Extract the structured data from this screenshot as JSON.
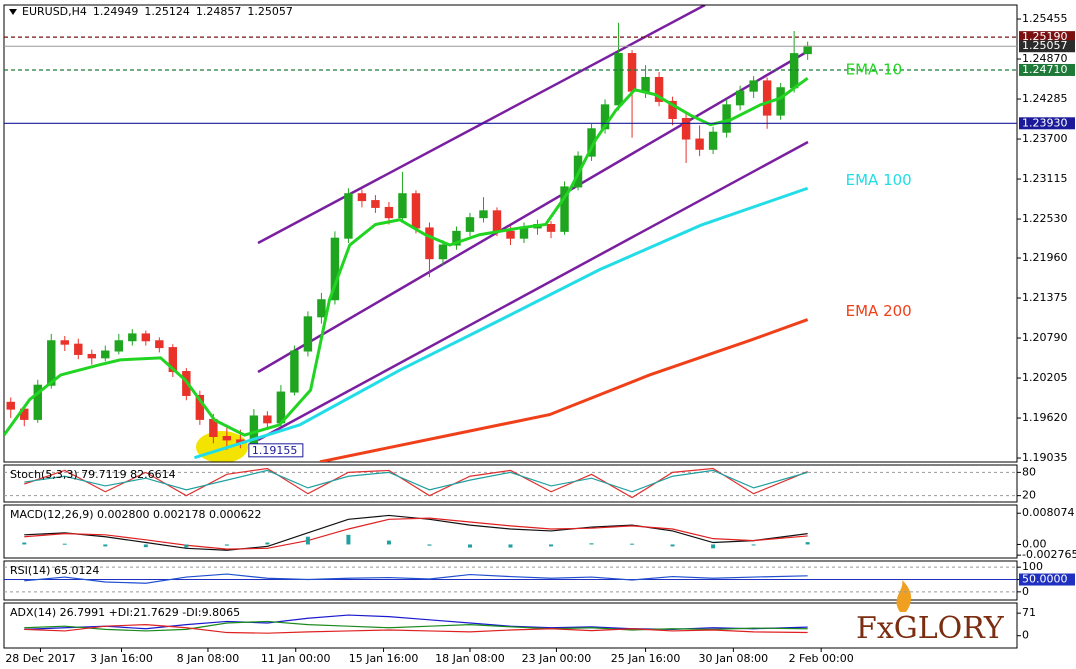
{
  "chart_data": [
    {
      "type": "candlestick",
      "symbol": "EURUSD,H4",
      "xlim": [
        0,
        75
      ],
      "xticks": [
        {
          "value": 2.7,
          "label": "28 Dec 2017"
        },
        {
          "value": 8.7,
          "label": "3 Jan 16:00"
        },
        {
          "value": 15.1,
          "label": "8 Jan 08:00"
        },
        {
          "value": 21.6,
          "label": "11 Jan 00:00"
        },
        {
          "value": 28.1,
          "label": "15 Jan 16:00"
        },
        {
          "value": 34.5,
          "label": "18 Jan 08:00"
        },
        {
          "value": 40.9,
          "label": "23 Jan 00:00"
        },
        {
          "value": 47.5,
          "label": "25 Jan 16:00"
        },
        {
          "value": 54,
          "label": "30 Jan 08:00"
        },
        {
          "value": 60.5,
          "label": "2 Feb 00:00"
        }
      ],
      "ylim": [
        1.18977,
        1.2566
      ],
      "yticks": [
        1.25455,
        {
          "value": 1.2487,
          "label": "1.24870"
        },
        1.24285,
        {
          "value": 1.237,
          "label": "1.23700"
        },
        1.23115,
        {
          "value": 1.2253,
          "label": "1.22530"
        },
        {
          "value": 1.2196,
          "label": "1.21960"
        },
        1.21375,
        {
          "value": 1.2079,
          "label": "1.20790"
        },
        1.20205,
        {
          "value": 1.1962,
          "label": "1.19620"
        },
        1.19035
      ],
      "bull_color": "#1fa51f",
      "bear_color": "#e8322a",
      "price_levels": [
        {
          "value": 1.2519,
          "label": "1.25190",
          "color": "#7a1010",
          "dashed": true
        },
        {
          "value": 1.2471,
          "label": "1.24710",
          "color": "#1f7a3a",
          "dashed": true
        },
        {
          "value": 1.2393,
          "label": "1.23930",
          "color": "#1a1a9a",
          "dashed": false
        }
      ],
      "candles": [
        [
          1.1985,
          1.1992,
          1.1962,
          1.1975
        ],
        [
          1.1975,
          1.198,
          1.195,
          1.196
        ],
        [
          1.196,
          1.2018,
          1.1955,
          1.201
        ],
        [
          1.201,
          1.2085,
          1.2005,
          1.2075
        ],
        [
          1.2075,
          1.2082,
          1.206,
          1.207
        ],
        [
          1.207,
          1.2078,
          1.2048,
          1.2055
        ],
        [
          1.2055,
          1.2062,
          1.204,
          1.205
        ],
        [
          1.205,
          1.2068,
          1.2045,
          1.206
        ],
        [
          1.206,
          1.2085,
          1.2055,
          1.2075
        ],
        [
          1.2075,
          1.2092,
          1.2068,
          1.2085
        ],
        [
          1.2085,
          1.209,
          1.2068,
          1.2075
        ],
        [
          1.2075,
          1.208,
          1.2058,
          1.2065
        ],
        [
          1.2065,
          1.207,
          1.2022,
          1.203
        ],
        [
          1.203,
          1.2035,
          1.1988,
          1.1995
        ],
        [
          1.1995,
          1.2002,
          1.1952,
          1.196
        ],
        [
          1.196,
          1.1968,
          1.1925,
          1.1935
        ],
        [
          1.1935,
          1.1948,
          1.19155,
          1.193
        ],
        [
          1.193,
          1.1945,
          1.1918,
          1.1925
        ],
        [
          1.1925,
          1.1975,
          1.192,
          1.1965
        ],
        [
          1.1965,
          1.1972,
          1.1945,
          1.1955
        ],
        [
          1.1955,
          1.201,
          1.195,
          1.2
        ],
        [
          1.2,
          1.2068,
          1.1995,
          1.206
        ],
        [
          1.206,
          1.2118,
          1.2052,
          1.211
        ],
        [
          1.211,
          1.2145,
          1.21,
          1.2135
        ],
        [
          1.2135,
          1.2235,
          1.2128,
          1.2225
        ],
        [
          1.2225,
          1.2298,
          1.2218,
          1.229
        ],
        [
          1.229,
          1.2296,
          1.227,
          1.228
        ],
        [
          1.228,
          1.2288,
          1.2262,
          1.227
        ],
        [
          1.227,
          1.2278,
          1.2245,
          1.2255
        ],
        [
          1.2255,
          1.2322,
          1.225,
          1.229
        ],
        [
          1.229,
          1.2295,
          1.2232,
          1.224
        ],
        [
          1.224,
          1.2248,
          1.2168,
          1.2195
        ],
        [
          1.2195,
          1.2222,
          1.2185,
          1.2215
        ],
        [
          1.2215,
          1.2242,
          1.2208,
          1.2235
        ],
        [
          1.2235,
          1.2262,
          1.2228,
          1.2255
        ],
        [
          1.2255,
          1.2285,
          1.2248,
          1.2265
        ],
        [
          1.2265,
          1.227,
          1.2228,
          1.2235
        ],
        [
          1.2235,
          1.2242,
          1.2215,
          1.2225
        ],
        [
          1.2225,
          1.2248,
          1.2218,
          1.224
        ],
        [
          1.224,
          1.2252,
          1.223,
          1.2245
        ],
        [
          1.2245,
          1.225,
          1.2225,
          1.2235
        ],
        [
          1.2235,
          1.2308,
          1.223,
          1.23
        ],
        [
          1.23,
          1.2352,
          1.2295,
          1.2345
        ],
        [
          1.2345,
          1.2392,
          1.2338,
          1.2385
        ],
        [
          1.2385,
          1.2428,
          1.2378,
          1.242
        ],
        [
          1.242,
          1.254,
          1.2412,
          1.2495
        ],
        [
          1.2495,
          1.25,
          1.2372,
          1.244
        ],
        [
          1.244,
          1.2478,
          1.243,
          1.246
        ],
        [
          1.246,
          1.2468,
          1.2418,
          1.2425
        ],
        [
          1.2425,
          1.2432,
          1.239,
          1.24
        ],
        [
          1.24,
          1.2408,
          1.2335,
          1.237
        ],
        [
          1.237,
          1.239,
          1.2345,
          1.2355
        ],
        [
          1.2355,
          1.2388,
          1.2348,
          1.238
        ],
        [
          1.238,
          1.2428,
          1.2372,
          1.242
        ],
        [
          1.242,
          1.2448,
          1.2412,
          1.244
        ],
        [
          1.244,
          1.2462,
          1.243,
          1.2455
        ],
        [
          1.2455,
          1.246,
          1.2385,
          1.2405
        ],
        [
          1.2405,
          1.2452,
          1.2398,
          1.2445
        ],
        [
          1.2445,
          1.2528,
          1.2438,
          1.24949
        ],
        [
          1.24949,
          1.25124,
          1.24857,
          1.25057
        ]
      ],
      "series": [
        {
          "name": "EMA 10",
          "color": "#22d422",
          "x": [
            0,
            1.9,
            4.2,
            7.1,
            8.6,
            11.6,
            13.4,
            15.6,
            17.8,
            20.4,
            22.7,
            24.1,
            25.6,
            27.5,
            29.3,
            31.2,
            33,
            35.2,
            38.2,
            40.1,
            41.9,
            43.8,
            45.3,
            46.7,
            48.2,
            50.8,
            52.3,
            53.8,
            56,
            57.5,
            59.5
          ],
          "values": [
            1.1937,
            1.1989,
            1.2025,
            1.204,
            1.2047,
            1.205,
            1.2018,
            1.1959,
            1.1937,
            1.1952,
            1.2003,
            1.2135,
            1.2215,
            1.2245,
            1.2252,
            1.223,
            1.2215,
            1.223,
            1.224,
            1.2245,
            1.2296,
            1.2369,
            1.2412,
            1.2442,
            1.2435,
            1.2405,
            1.2391,
            1.2398,
            1.242,
            1.243,
            1.2459
          ]
        },
        {
          "name": "EMA 100",
          "color": "#22dde8",
          "x": [
            14.1,
            21.9,
            29.3,
            36.7,
            44.1,
            51.6,
            59.5
          ],
          "values": [
            1.1904,
            1.1952,
            1.2032,
            1.2105,
            1.2179,
            1.2244,
            1.2298
          ]
        },
        {
          "name": "EMA 200",
          "color": "#f0401a",
          "x": [
            23.4,
            33,
            40.4,
            47.8,
            55.3,
            59.5
          ],
          "values": [
            1.1898,
            1.1937,
            1.1967,
            1.2025,
            1.2076,
            1.2106
          ]
        }
      ]
    },
    {
      "type": "line",
      "title": "Stoch(5,3,3) 79.7119 82.6614",
      "ylim": [
        3.6,
        99
      ],
      "yticks": [
        80,
        20
      ],
      "grid": true,
      "x": [
        1.5,
        4.5,
        7.5,
        10.5,
        13.5,
        16.5,
        19.5,
        22.5,
        25.5,
        28.5,
        31.5,
        34.5,
        37.5,
        40.5,
        43.5,
        46.5,
        49.5,
        52.5,
        55.5,
        59.5
      ],
      "series": [
        {
          "color": "#e03030",
          "values": [
            50,
            85,
            30,
            80,
            20,
            75,
            90,
            25,
            80,
            85,
            20,
            70,
            85,
            30,
            75,
            15,
            80,
            90,
            25,
            82
          ]
        },
        {
          "color": "#20a0a0",
          "values": [
            55,
            70,
            45,
            65,
            35,
            60,
            85,
            40,
            70,
            80,
            35,
            60,
            80,
            45,
            65,
            30,
            70,
            85,
            40,
            80
          ]
        }
      ]
    },
    {
      "type": "line",
      "title": "MACD(12,26,9) 0.002800 0.002178 0.000622",
      "ylim": [
        -0.0035,
        0.0102
      ],
      "yticks": [
        0.008074,
        {
          "value": 0,
          "label": "0.00"
        },
        -0.002765
      ],
      "grid": false,
      "x": [
        1.5,
        4.5,
        7.5,
        10.5,
        13.5,
        16.5,
        19.5,
        22.5,
        25.5,
        28.5,
        31.5,
        34.5,
        37.5,
        40.5,
        43.5,
        46.5,
        49.5,
        52.5,
        55.5,
        59.5
      ],
      "series": [
        {
          "color": "#111111",
          "values": [
            0.0025,
            0.003,
            0.002,
            0.0005,
            -0.001,
            -0.0015,
            -0.0005,
            0.003,
            0.0065,
            0.0075,
            0.0065,
            0.005,
            0.004,
            0.0035,
            0.0045,
            0.005,
            0.0035,
            0.0005,
            0.001,
            0.0028
          ]
        },
        {
          "color": "#e02020",
          "values": [
            0.002,
            0.0028,
            0.0025,
            0.0012,
            -0.0002,
            -0.0012,
            -0.001,
            0.001,
            0.004,
            0.0065,
            0.0068,
            0.0058,
            0.0048,
            0.004,
            0.0042,
            0.0048,
            0.004,
            0.0015,
            0.001,
            0.0022
          ]
        },
        {
          "type": "bar",
          "color": "#20a0a0",
          "values": [
            0.0005,
            0.0002,
            -0.0005,
            -0.0007,
            -0.0008,
            -0.0003,
            0.0005,
            0.002,
            0.0025,
            0.001,
            -0.0003,
            -0.0008,
            -0.0008,
            -0.0005,
            0.0003,
            0.0002,
            -0.0005,
            -0.001,
            0,
            0.0006
          ]
        }
      ]
    },
    {
      "type": "line",
      "title": "RSI(14) 65.0124",
      "ylim": [
        -33,
        125
      ],
      "yticks": [
        100,
        {
          "value": 50,
          "label": "50.0000",
          "color": "#1f2fbf"
        },
        0
      ],
      "grid": true,
      "x": [
        1.5,
        4.5,
        7.5,
        10.5,
        13.5,
        16.5,
        19.5,
        22.5,
        25.5,
        28.5,
        31.5,
        34.5,
        37.5,
        40.5,
        43.5,
        46.5,
        49.5,
        52.5,
        55.5,
        59.5
      ],
      "series": [
        {
          "color": "#2050d0",
          "values": [
            45,
            60,
            40,
            35,
            60,
            72,
            55,
            50,
            55,
            58,
            52,
            70,
            62,
            55,
            60,
            48,
            62,
            55,
            60,
            65
          ]
        }
      ]
    },
    {
      "type": "line",
      "title": "ADX(14) 26.7991 +DI:21.7629 -DI:9.8065",
      "ylim": [
        -38.7,
        103
      ],
      "yticks": [
        71,
        0
      ],
      "grid": false,
      "x": [
        1.5,
        4.5,
        7.5,
        10.5,
        13.5,
        16.5,
        19.5,
        22.5,
        25.5,
        28.5,
        31.5,
        34.5,
        37.5,
        40.5,
        43.5,
        46.5,
        49.5,
        52.5,
        55.5,
        59.5
      ],
      "series": [
        {
          "color": "#1a1ad0",
          "values": [
            20,
            25,
            30,
            22,
            35,
            45,
            40,
            55,
            65,
            60,
            50,
            40,
            30,
            25,
            28,
            22,
            20,
            25,
            22,
            27
          ]
        },
        {
          "color": "#1a8a1a",
          "values": [
            25,
            30,
            20,
            15,
            20,
            40,
            45,
            35,
            30,
            25,
            30,
            35,
            28,
            22,
            25,
            18,
            22,
            20,
            24,
            22
          ]
        },
        {
          "color": "#e02020",
          "values": [
            20,
            15,
            30,
            35,
            25,
            10,
            8,
            12,
            15,
            18,
            15,
            12,
            18,
            22,
            16,
            22,
            15,
            18,
            12,
            10
          ]
        }
      ]
    }
  ],
  "logo": "FxGLORY"
}
